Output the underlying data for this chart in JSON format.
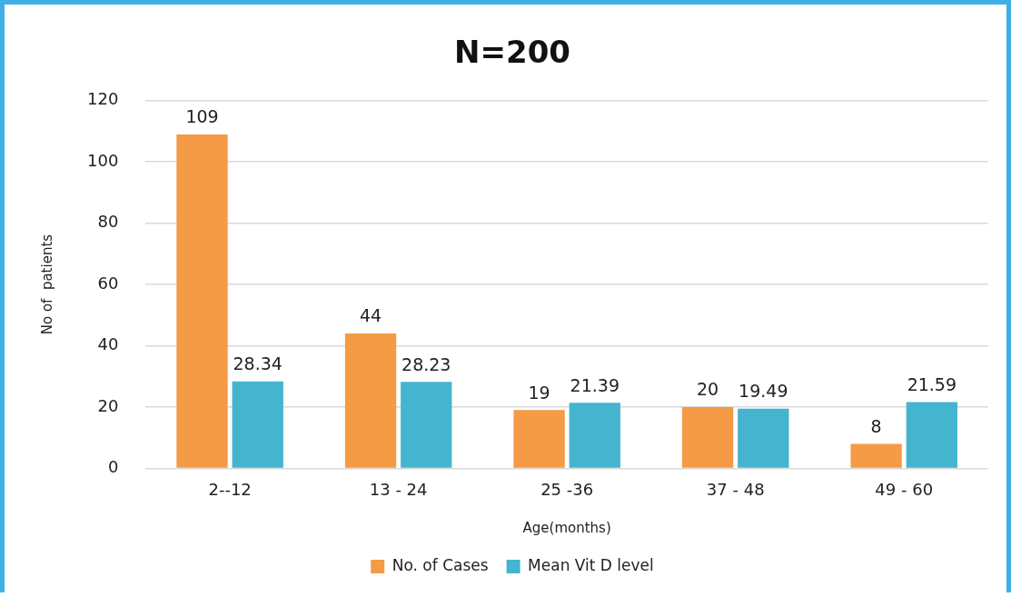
{
  "chart_data": {
    "type": "bar",
    "title": "N=200",
    "xlabel": "Age(months)",
    "ylabel": "No of  patients",
    "categories": [
      "2--12",
      "13 - 24",
      "25 -36",
      "37 - 48",
      "49 - 60"
    ],
    "series": [
      {
        "name": "No. of Cases",
        "color": "#f59a45",
        "values": [
          109,
          44,
          19,
          20,
          8
        ]
      },
      {
        "name": "Mean Vit D level",
        "color": "#45b4cf",
        "values": [
          28.34,
          28.23,
          21.39,
          19.49,
          21.59
        ]
      }
    ],
    "ylim": [
      0,
      120
    ],
    "yticks": [
      0,
      20,
      40,
      60,
      80,
      100,
      120
    ],
    "grid": "y",
    "legend": "bottom",
    "data_labels": true
  }
}
